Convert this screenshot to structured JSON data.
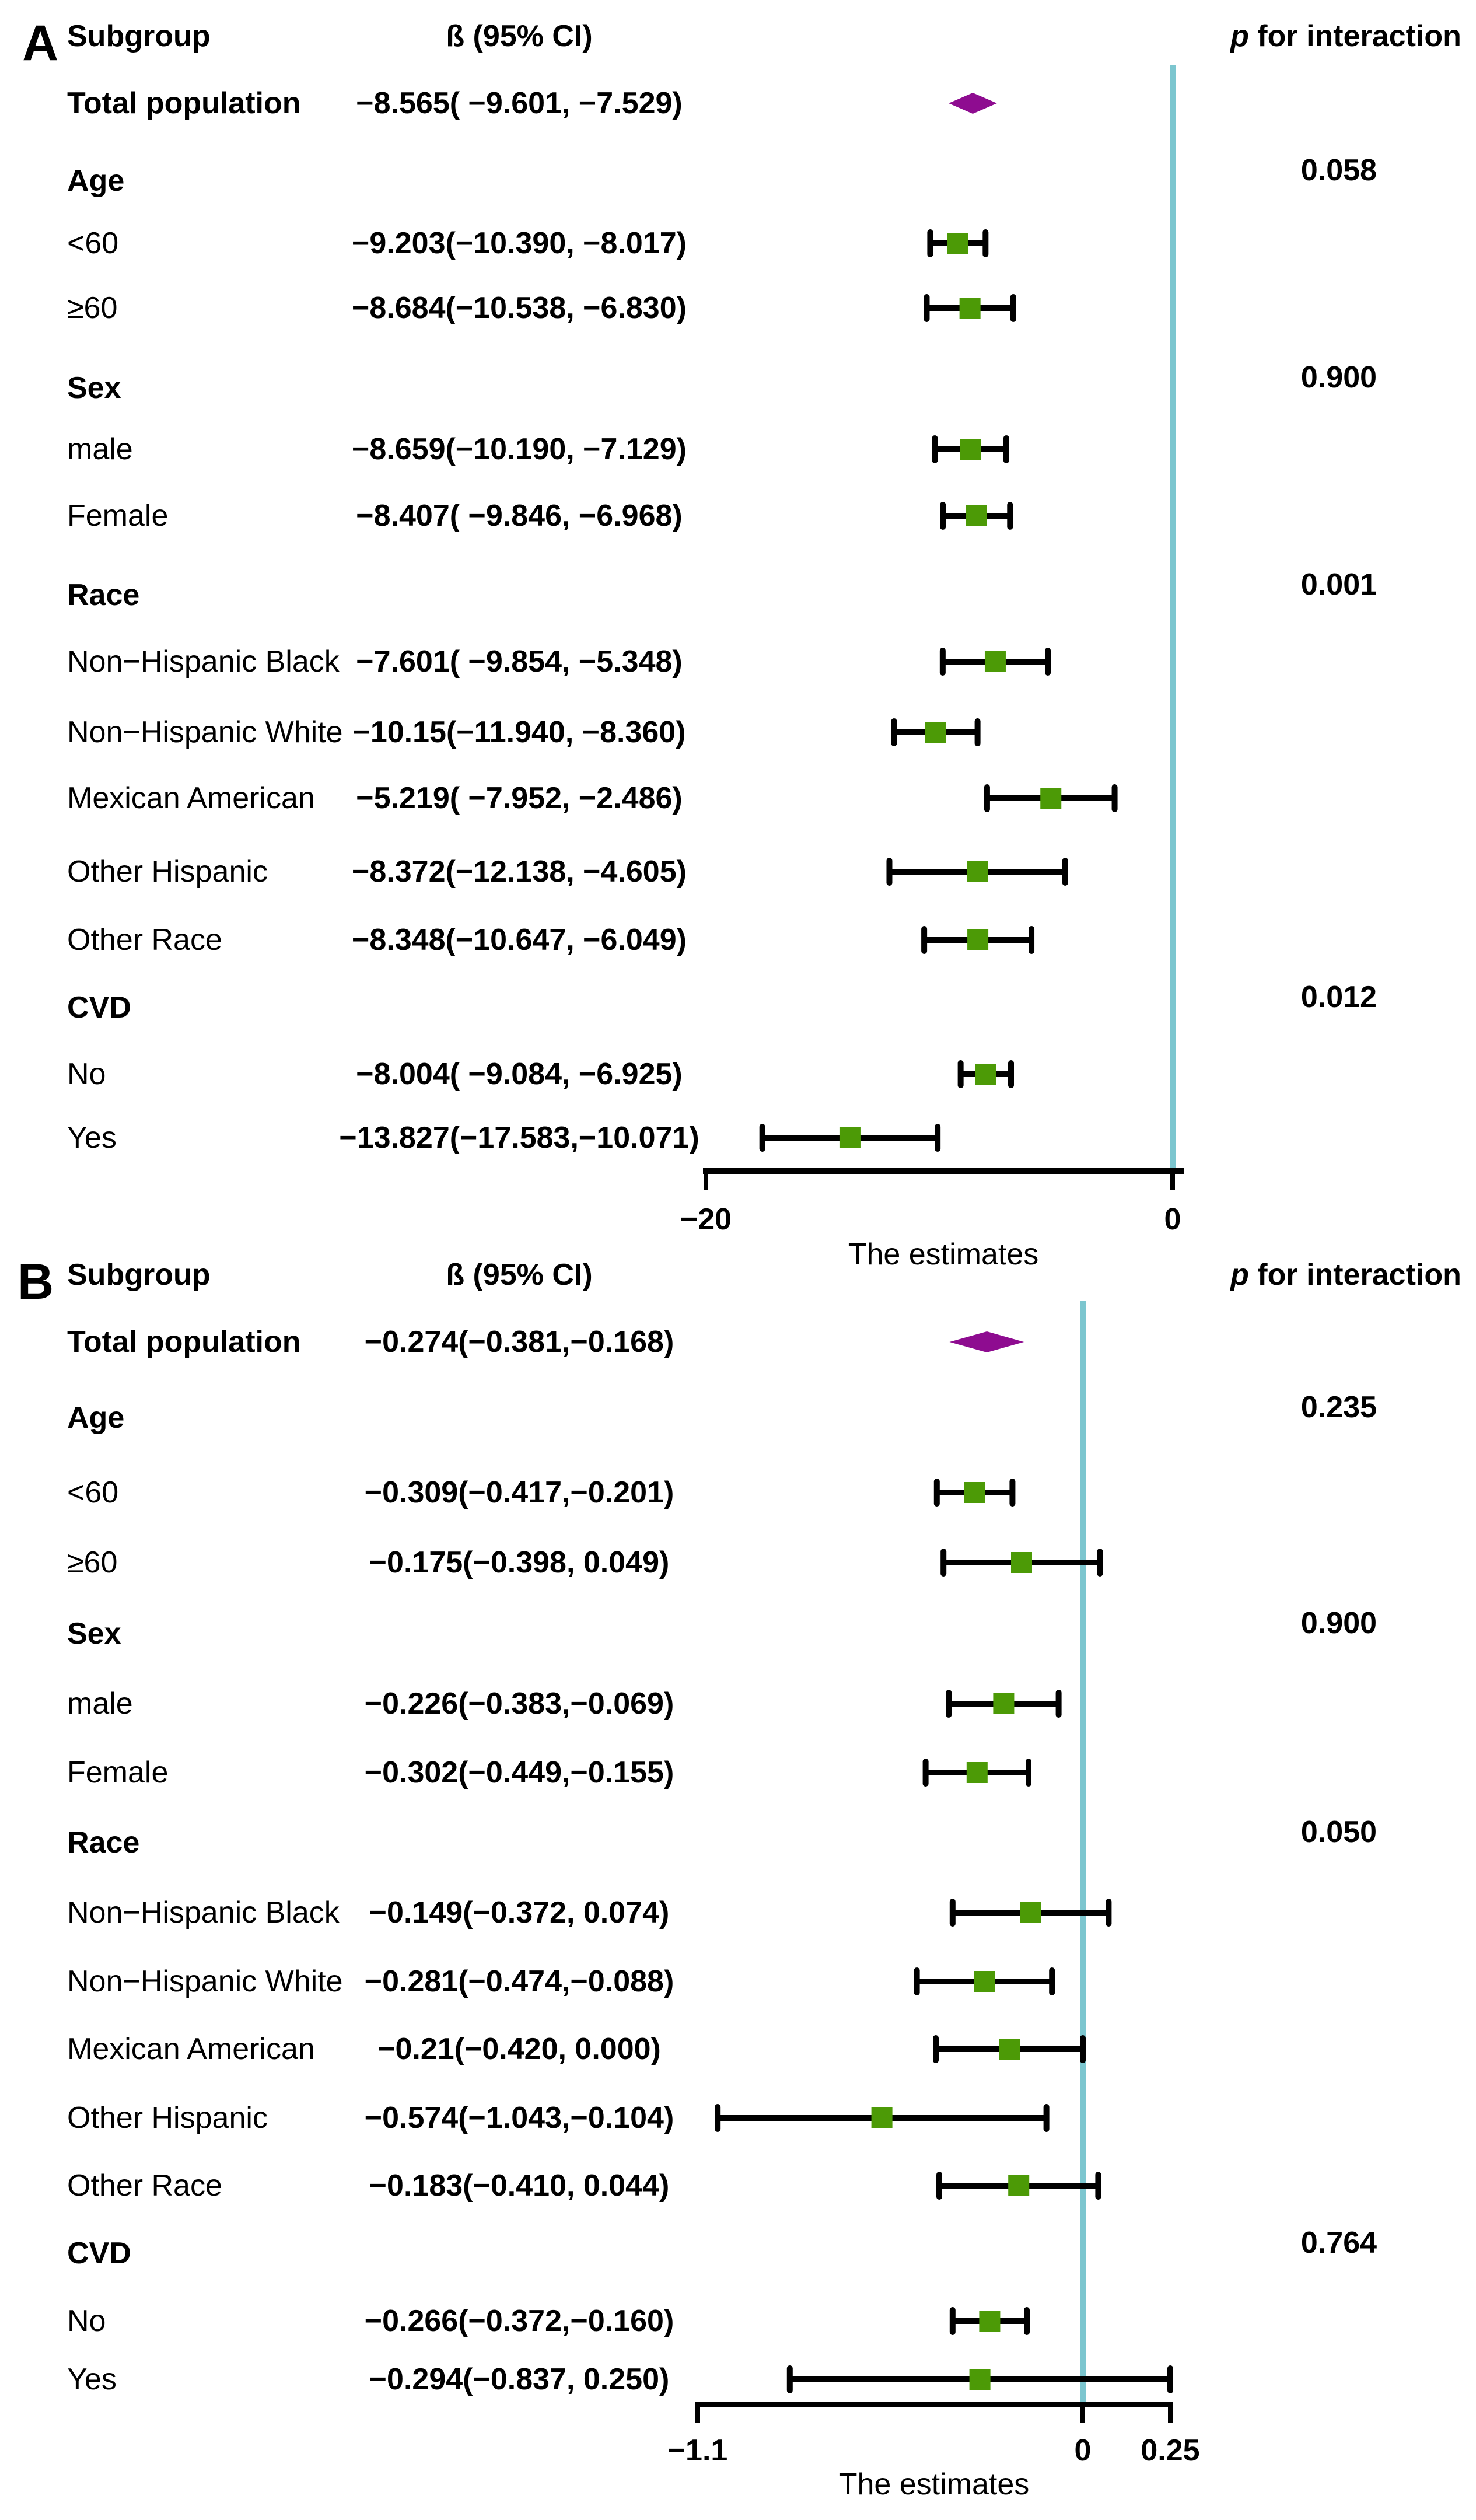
{
  "figure": {
    "columns": {
      "subgroup": "Subgroup",
      "beta_ci": "ß (95% CI)",
      "p_interaction_prefix": "p",
      "p_interaction_rest": " for interaction"
    },
    "colors": {
      "marker_green": "#4c9a06",
      "diamond_purple": "#8e0c90",
      "ref_line_teal": "#7cc6cf",
      "bar_black": "#000000",
      "text_black": "#000000",
      "background": "#ffffff"
    }
  },
  "chart_data": [
    {
      "type": "forest",
      "panel": "A",
      "x_axis": {
        "label": "The estimates",
        "range": [
          -20,
          0
        ],
        "ref_line": 0,
        "ticks": [
          {
            "value": -20,
            "label": "−20"
          },
          {
            "value": 0,
            "label": "0"
          }
        ]
      },
      "rows": [
        {
          "kind": "summary",
          "label": "Total population",
          "ci_text": "−8.565( −9.601, −7.529)",
          "estimate": -8.565,
          "lower": -9.601,
          "upper": -7.529
        },
        {
          "kind": "section",
          "label": "Age",
          "p": "0.058"
        },
        {
          "kind": "item",
          "label": "<60",
          "ci_text": "−9.203(−10.390, −8.017)",
          "estimate": -9.203,
          "lower": -10.39,
          "upper": -8.017
        },
        {
          "kind": "item",
          "label": "≥60",
          "ci_text": "−8.684(−10.538, −6.830)",
          "estimate": -8.684,
          "lower": -10.538,
          "upper": -6.83
        },
        {
          "kind": "section",
          "label": "Sex",
          "p": "0.900"
        },
        {
          "kind": "item",
          "label": "male",
          "ci_text": "−8.659(−10.190, −7.129)",
          "estimate": -8.659,
          "lower": -10.19,
          "upper": -7.129
        },
        {
          "kind": "item",
          "label": "Female",
          "ci_text": "−8.407( −9.846, −6.968)",
          "estimate": -8.407,
          "lower": -9.846,
          "upper": -6.968
        },
        {
          "kind": "section",
          "label": "Race",
          "p": "0.001"
        },
        {
          "kind": "item",
          "label": "Non−Hispanic Black",
          "ci_text": "−7.601( −9.854, −5.348)",
          "estimate": -7.601,
          "lower": -9.854,
          "upper": -5.348
        },
        {
          "kind": "item",
          "label": "Non−Hispanic White",
          "ci_text": "−10.15(−11.940, −8.360)",
          "estimate": -10.15,
          "lower": -11.94,
          "upper": -8.36
        },
        {
          "kind": "item",
          "label": "Mexican American",
          "ci_text": "−5.219( −7.952, −2.486)",
          "estimate": -5.219,
          "lower": -7.952,
          "upper": -2.486
        },
        {
          "kind": "item",
          "label": "Other Hispanic",
          "ci_text": "−8.372(−12.138, −4.605)",
          "estimate": -8.372,
          "lower": -12.138,
          "upper": -4.605
        },
        {
          "kind": "item",
          "label": "Other Race",
          "ci_text": "−8.348(−10.647, −6.049)",
          "estimate": -8.348,
          "lower": -10.647,
          "upper": -6.049
        },
        {
          "kind": "section",
          "label": "CVD",
          "p": "0.012"
        },
        {
          "kind": "item",
          "label": "No",
          "ci_text": "−8.004( −9.084, −6.925)",
          "estimate": -8.004,
          "lower": -9.084,
          "upper": -6.925
        },
        {
          "kind": "item",
          "label": "Yes",
          "ci_text": "−13.827(−17.583,−10.071)",
          "estimate": -13.827,
          "lower": -17.583,
          "upper": -10.071
        }
      ]
    },
    {
      "type": "forest",
      "panel": "B",
      "x_axis": {
        "label": "The estimates",
        "range": [
          -1.1,
          0.25
        ],
        "ref_line": 0,
        "ticks": [
          {
            "value": -1.1,
            "label": "−1.1"
          },
          {
            "value": 0,
            "label": "0"
          },
          {
            "value": 0.25,
            "label": "0.25"
          }
        ]
      },
      "rows": [
        {
          "kind": "summary",
          "label": "Total population",
          "ci_text": "−0.274(−0.381,−0.168)",
          "estimate": -0.274,
          "lower": -0.381,
          "upper": -0.168
        },
        {
          "kind": "section",
          "label": "Age",
          "p": "0.235"
        },
        {
          "kind": "item",
          "label": "<60",
          "ci_text": "−0.309(−0.417,−0.201)",
          "estimate": -0.309,
          "lower": -0.417,
          "upper": -0.201
        },
        {
          "kind": "item",
          "label": "≥60",
          "ci_text": "−0.175(−0.398, 0.049)",
          "estimate": -0.175,
          "lower": -0.398,
          "upper": 0.049
        },
        {
          "kind": "section",
          "label": "Sex",
          "p": "0.900"
        },
        {
          "kind": "item",
          "label": "male",
          "ci_text": "−0.226(−0.383,−0.069)",
          "estimate": -0.226,
          "lower": -0.383,
          "upper": -0.069
        },
        {
          "kind": "item",
          "label": "Female",
          "ci_text": "−0.302(−0.449,−0.155)",
          "estimate": -0.302,
          "lower": -0.449,
          "upper": -0.155
        },
        {
          "kind": "section",
          "label": "Race",
          "p": "0.050"
        },
        {
          "kind": "item",
          "label": "Non−Hispanic Black",
          "ci_text": "−0.149(−0.372, 0.074)",
          "estimate": -0.149,
          "lower": -0.372,
          "upper": 0.074
        },
        {
          "kind": "item",
          "label": "Non−Hispanic White",
          "ci_text": "−0.281(−0.474,−0.088)",
          "estimate": -0.281,
          "lower": -0.474,
          "upper": -0.088
        },
        {
          "kind": "item",
          "label": "Mexican American",
          "ci_text": "−0.21(−0.420, 0.000)",
          "estimate": -0.21,
          "lower": -0.42,
          "upper": 0.0
        },
        {
          "kind": "item",
          "label": "Other Hispanic",
          "ci_text": "−0.574(−1.043,−0.104)",
          "estimate": -0.574,
          "lower": -1.043,
          "upper": -0.104
        },
        {
          "kind": "item",
          "label": "Other Race",
          "ci_text": "−0.183(−0.410, 0.044)",
          "estimate": -0.183,
          "lower": -0.41,
          "upper": 0.044
        },
        {
          "kind": "section",
          "label": "CVD",
          "p": "0.764"
        },
        {
          "kind": "item",
          "label": "No",
          "ci_text": "−0.266(−0.372,−0.160)",
          "estimate": -0.266,
          "lower": -0.372,
          "upper": -0.16
        },
        {
          "kind": "item",
          "label": "Yes",
          "ci_text": "−0.294(−0.837, 0.250)",
          "estimate": -0.294,
          "lower": -0.837,
          "upper": 0.25
        }
      ]
    }
  ]
}
